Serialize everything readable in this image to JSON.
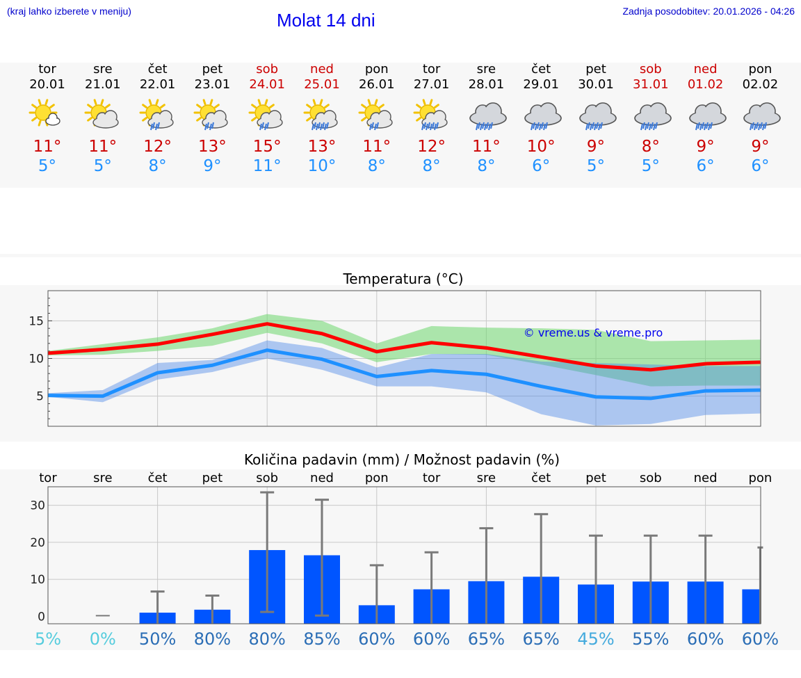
{
  "header": {
    "region_hint": "(kraj lahko izberete v meniju)",
    "title": "Molat 14 dni",
    "updated": "Zadnja posodobitev: 20.01.2026 - 04:26"
  },
  "days": [
    {
      "dow": "tor",
      "date": "20.01",
      "weekend": false,
      "icon": "sun-small-cloud-icon",
      "tmax": "11°",
      "tmin": "5°"
    },
    {
      "dow": "sre",
      "date": "21.01",
      "weekend": false,
      "icon": "sun-cloud-icon",
      "tmax": "11°",
      "tmin": "5°"
    },
    {
      "dow": "čet",
      "date": "22.01",
      "weekend": false,
      "icon": "sun-cloud-rain-icon",
      "tmax": "12°",
      "tmin": "8°"
    },
    {
      "dow": "pet",
      "date": "23.01",
      "weekend": false,
      "icon": "sun-cloud-rain-icon",
      "tmax": "13°",
      "tmin": "9°"
    },
    {
      "dow": "sob",
      "date": "24.01",
      "weekend": true,
      "icon": "sun-cloud-rain-icon",
      "tmax": "15°",
      "tmin": "11°"
    },
    {
      "dow": "ned",
      "date": "25.01",
      "weekend": true,
      "icon": "sun-cloud-heavy-rain-icon",
      "tmax": "13°",
      "tmin": "10°"
    },
    {
      "dow": "pon",
      "date": "26.01",
      "weekend": false,
      "icon": "sun-cloud-rain-icon",
      "tmax": "11°",
      "tmin": "8°"
    },
    {
      "dow": "tor",
      "date": "27.01",
      "weekend": false,
      "icon": "sun-cloud-heavy-rain-icon",
      "tmax": "12°",
      "tmin": "8°"
    },
    {
      "dow": "sre",
      "date": "28.01",
      "weekend": false,
      "icon": "cloud-heavy-rain-icon",
      "tmax": "11°",
      "tmin": "8°"
    },
    {
      "dow": "čet",
      "date": "29.01",
      "weekend": false,
      "icon": "cloud-heavy-rain-icon",
      "tmax": "10°",
      "tmin": "6°"
    },
    {
      "dow": "pet",
      "date": "30.01",
      "weekend": false,
      "icon": "cloud-heavy-rain-icon",
      "tmax": "9°",
      "tmin": "5°"
    },
    {
      "dow": "sob",
      "date": "31.01",
      "weekend": true,
      "icon": "cloud-heavy-rain-icon",
      "tmax": "8°",
      "tmin": "5°"
    },
    {
      "dow": "ned",
      "date": "01.02",
      "weekend": true,
      "icon": "cloud-heavy-rain-icon",
      "tmax": "9°",
      "tmin": "6°"
    },
    {
      "dow": "pon",
      "date": "02.02",
      "weekend": false,
      "icon": "cloud-heavy-rain-icon",
      "tmax": "9°",
      "tmin": "6°"
    }
  ],
  "chart_data": [
    {
      "type": "line",
      "title": "Temperatura (°C)",
      "watermark": "© vreme.us & vreme.pro",
      "x": [
        0,
        1,
        2,
        3,
        4,
        5,
        6,
        7,
        8,
        9,
        10,
        11,
        12,
        13
      ],
      "ylim": [
        1,
        19
      ],
      "yticks": [
        5,
        10,
        15
      ],
      "grid": true,
      "series": [
        {
          "name": "max",
          "color": "#ff0000",
          "values": [
            10.7,
            11.2,
            11.9,
            13.2,
            14.6,
            13.3,
            10.9,
            12.1,
            11.4,
            10.2,
            9.0,
            8.5,
            9.3,
            9.5
          ]
        },
        {
          "name": "max-low",
          "values": [
            10.4,
            10.5,
            11.0,
            11.7,
            13.4,
            12.0,
            9.5,
            10.6,
            10.5,
            9.2,
            7.8,
            6.3,
            6.4,
            6.4
          ]
        },
        {
          "name": "max-high",
          "values": [
            11.0,
            11.9,
            12.8,
            14.0,
            15.9,
            15.0,
            12.0,
            14.3,
            14.1,
            14.0,
            13.8,
            12.3,
            12.4,
            12.5
          ]
        },
        {
          "name": "min",
          "color": "#1e90ff",
          "values": [
            5.1,
            5.0,
            8.1,
            9.1,
            11.1,
            9.9,
            7.6,
            8.4,
            7.9,
            6.3,
            4.9,
            4.7,
            5.7,
            5.8
          ]
        },
        {
          "name": "min-low",
          "values": [
            4.9,
            4.2,
            7.2,
            8.2,
            10.0,
            8.5,
            6.3,
            6.3,
            5.5,
            2.6,
            1.1,
            1.3,
            2.5,
            2.7
          ]
        },
        {
          "name": "min-high",
          "values": [
            5.4,
            5.8,
            9.4,
            9.8,
            12.4,
            11.4,
            8.8,
            10.6,
            10.6,
            9.6,
            9.4,
            9.2,
            9.0,
            9.0
          ]
        }
      ]
    },
    {
      "type": "bar",
      "title": "Količina padavin (mm) / Možnost padavin (%)",
      "categories": [
        "tor",
        "sre",
        "čet",
        "pet",
        "sob",
        "ned",
        "pon",
        "tor",
        "sre",
        "čet",
        "pet",
        "sob",
        "ned",
        "pon"
      ],
      "ylim": [
        -2,
        35
      ],
      "yticks": [
        0,
        10,
        20,
        30
      ],
      "grid": true,
      "bar_color": "#0055ff",
      "values": [
        0,
        0,
        1.0,
        1.8,
        17.9,
        16.5,
        3.0,
        7.3,
        9.5,
        10.7,
        8.6,
        9.4,
        9.4,
        7.3
      ],
      "ranges": [
        [
          0,
          0
        ],
        [
          0,
          0
        ],
        [
          0,
          6.7
        ],
        [
          0,
          5.6
        ],
        [
          1.2,
          33.5
        ],
        [
          0.2,
          31.5
        ],
        [
          0,
          13.8
        ],
        [
          0,
          17.3
        ],
        [
          0,
          23.8
        ],
        [
          0,
          27.6
        ],
        [
          0,
          21.8
        ],
        [
          0,
          21.8
        ],
        [
          0,
          21.8
        ],
        [
          0,
          18.6
        ]
      ],
      "probabilities": [
        "5%",
        "0%",
        "50%",
        "80%",
        "80%",
        "85%",
        "60%",
        "60%",
        "65%",
        "65%",
        "45%",
        "55%",
        "60%",
        "60%"
      ],
      "probability_colors": [
        "#55ccdd",
        "#55ccdd",
        "#2a6db5",
        "#2a6db5",
        "#2a6db5",
        "#2a6db5",
        "#2a6db5",
        "#2a6db5",
        "#2a6db5",
        "#2a6db5",
        "#44aadd",
        "#2a6db5",
        "#2a6db5",
        "#2a6db5"
      ]
    }
  ]
}
